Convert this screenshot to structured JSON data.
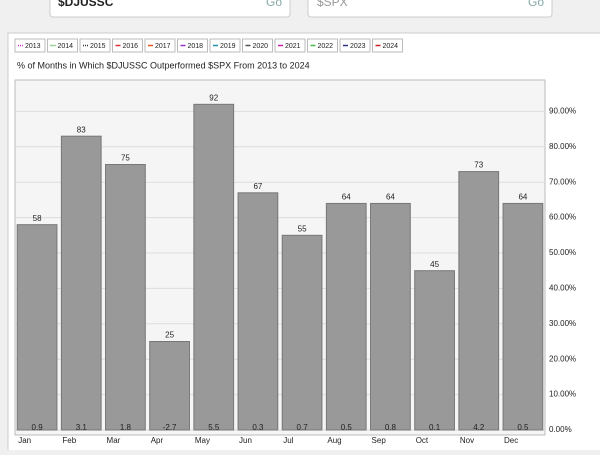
{
  "search": [
    {
      "text": "$DJUSSC",
      "button": "Go"
    },
    {
      "text": "$SPX",
      "button": "Go"
    }
  ],
  "chart_data": {
    "type": "bar",
    "title": "% of Months in Which $DJUSSC Outperformed $SPX From 2013 to 2024",
    "legend": [
      {
        "name": "2013",
        "color": "#cc33cc"
      },
      {
        "name": "2014",
        "color": "#33aa33"
      },
      {
        "name": "2015",
        "color": "#333333"
      },
      {
        "name": "2016",
        "color": "#dd3333"
      },
      {
        "name": "2017",
        "color": "#ee5522"
      },
      {
        "name": "2018",
        "color": "#9933cc"
      },
      {
        "name": "2019",
        "color": "#2299aa"
      },
      {
        "name": "2020",
        "color": "#555555"
      },
      {
        "name": "2021",
        "color": "#cc22aa"
      },
      {
        "name": "2022",
        "color": "#44bb44"
      },
      {
        "name": "2023",
        "color": "#333388"
      },
      {
        "name": "2024",
        "color": "#cc2222"
      }
    ],
    "categories": [
      "Jan",
      "Feb",
      "Mar",
      "Apr",
      "May",
      "Jun",
      "Jul",
      "Aug",
      "Sep",
      "Oct",
      "Nov",
      "Dec"
    ],
    "values": [
      58,
      83,
      75,
      25,
      92,
      67,
      55,
      64,
      64,
      45,
      73,
      64
    ],
    "average_returns": [
      0.9,
      3.1,
      1.8,
      -2.7,
      5.5,
      0.3,
      0.7,
      0.5,
      0.8,
      0.1,
      4.2,
      0.5
    ],
    "color": "#999999",
    "ylim": [
      0,
      100
    ],
    "yticks": [
      {
        "value": 0,
        "label": "0.00%"
      },
      {
        "value": 10,
        "label": "10.00%"
      },
      {
        "value": 20,
        "label": "20.00%"
      },
      {
        "value": 30,
        "label": "30.00%"
      },
      {
        "value": 40,
        "label": "40.00%"
      },
      {
        "value": 50,
        "label": "50.00%"
      },
      {
        "value": 60,
        "label": "60.00%"
      },
      {
        "value": 70,
        "label": "70.00%"
      },
      {
        "value": 80,
        "label": "80.00%"
      },
      {
        "value": 90,
        "label": "90.00%"
      }
    ],
    "grid": true
  }
}
